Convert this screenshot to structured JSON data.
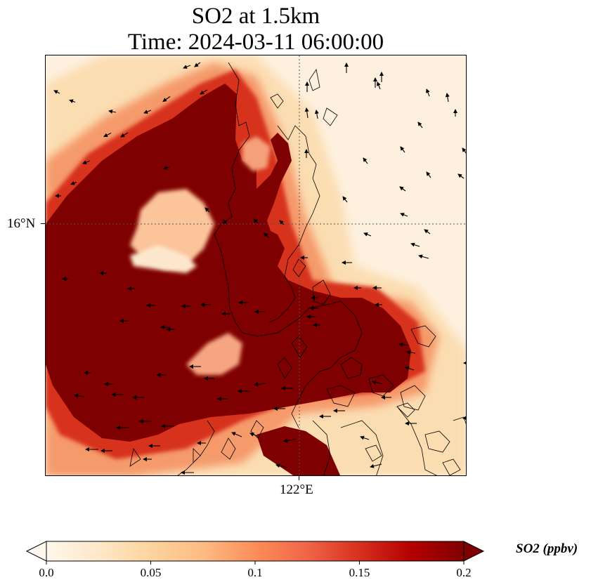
{
  "title": {
    "line1": "SO2 at 1.5km",
    "line2": "Time: 2024-03-11 06:00:00"
  },
  "map": {
    "variable": "SO2",
    "level": "1.5km",
    "gridlines": "dotted",
    "lat_label": "16°N",
    "lon_label": "122°E",
    "features": [
      "coastlines",
      "wind-vectors",
      "SO2-concentration-field"
    ]
  },
  "colorbar": {
    "label": "SO2 (ppbv)",
    "ticks": [
      "0.0",
      "0.05",
      "0.1",
      "0.15",
      "0.2"
    ],
    "tick_values": [
      0.0,
      0.05,
      0.1,
      0.15,
      0.2
    ],
    "range": [
      0.0,
      0.2
    ],
    "extend": "both",
    "colormap": "OrRd",
    "colors": [
      "#fff7ec",
      "#fee8c8",
      "#fdd49e",
      "#fdbb84",
      "#fc8d59",
      "#ef6548",
      "#d7301f",
      "#b30000",
      "#7f0000"
    ]
  }
}
